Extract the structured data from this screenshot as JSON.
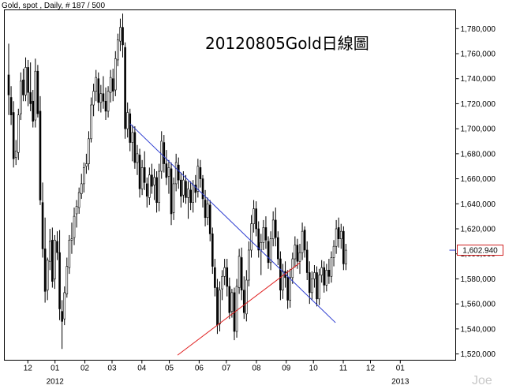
{
  "header": {
    "symbol_line": "Gold, spot , Daily, # 187 / 500"
  },
  "watermark": "Joe",
  "chart_data": {
    "type": "candlestick",
    "title": "20120805Gold日線圖",
    "ylim": [
      1515000,
      1795000
    ],
    "xlim": [
      0,
      187
    ],
    "yticks": [
      1520000,
      1540000,
      1560000,
      1580000,
      1600000,
      1620000,
      1640000,
      1660000,
      1680000,
      1700000,
      1720000,
      1740000,
      1760000,
      1780000
    ],
    "ytick_labels": [
      "1,520,000",
      "1,540,000",
      "1,560,000",
      "1,580,000",
      "1,600,000",
      "1,620,000",
      "1,640,000",
      "1,660,000",
      "1,680,000",
      "1,700,000",
      "1,720,000",
      "1,740,000",
      "1,760,000",
      "1,780,000"
    ],
    "xticks": [
      {
        "x": 7.9,
        "label": "12"
      },
      {
        "x": 19.1,
        "label": "01"
      },
      {
        "x": 31.4,
        "label": "02"
      },
      {
        "x": 42.6,
        "label": "03"
      },
      {
        "x": 54.9,
        "label": "04"
      },
      {
        "x": 66.2,
        "label": "05"
      },
      {
        "x": 78.5,
        "label": "06"
      },
      {
        "x": 89.7,
        "label": "07"
      },
      {
        "x": 102.1,
        "label": "08"
      },
      {
        "x": 114.4,
        "label": "09"
      },
      {
        "x": 125.6,
        "label": "10"
      },
      {
        "x": 137.9,
        "label": "11"
      },
      {
        "x": 149.1,
        "label": "12"
      },
      {
        "x": 161.4,
        "label": "01"
      }
    ],
    "year_labels": [
      {
        "x": 19.1,
        "label": "2012"
      },
      {
        "x": 161.4,
        "label": "2013"
      }
    ],
    "last_price": 1602940,
    "last_price_label": "1,602.940",
    "trendlines": [
      {
        "name": "resistance",
        "color": "#2a3ad0",
        "from": [
          50,
          1704000
        ],
        "to": [
          134.7,
          1545000
        ]
      },
      {
        "name": "support",
        "color": "#e02020",
        "from": [
          69.6,
          1519000
        ],
        "to": [
          120.1,
          1593000
        ]
      }
    ],
    "ohlc": [
      [
        1743000,
        1768000,
        1711000,
        1727000
      ],
      [
        1725000,
        1734000,
        1703000,
        1711000
      ],
      [
        1713000,
        1722000,
        1669000,
        1676000
      ],
      [
        1677000,
        1691000,
        1671000,
        1682000
      ],
      [
        1681000,
        1716000,
        1675000,
        1711000
      ],
      [
        1712000,
        1745000,
        1707000,
        1738000
      ],
      [
        1739000,
        1748000,
        1722000,
        1727000
      ],
      [
        1727000,
        1757000,
        1722000,
        1749000
      ],
      [
        1749000,
        1755000,
        1718000,
        1729000
      ],
      [
        1729000,
        1753000,
        1714000,
        1720000
      ],
      [
        1722000,
        1731000,
        1701000,
        1706000
      ],
      [
        1707000,
        1756000,
        1701000,
        1746000
      ],
      [
        1746000,
        1751000,
        1709000,
        1712000
      ],
      [
        1714000,
        1726000,
        1639000,
        1643000
      ],
      [
        1641000,
        1657000,
        1597000,
        1604000
      ],
      [
        1604000,
        1629000,
        1561000,
        1570000
      ],
      [
        1571000,
        1597000,
        1563000,
        1595000
      ],
      [
        1594000,
        1620000,
        1587000,
        1610000
      ],
      [
        1611000,
        1621000,
        1573000,
        1578000
      ],
      [
        1580000,
        1615000,
        1572000,
        1611000
      ],
      [
        1610000,
        1618000,
        1595000,
        1601000
      ],
      [
        1601000,
        1619000,
        1547000,
        1556000
      ],
      [
        1554000,
        1563000,
        1524000,
        1546000
      ],
      [
        1548000,
        1574000,
        1543000,
        1569000
      ],
      [
        1568000,
        1597000,
        1565000,
        1590000
      ],
      [
        1589000,
        1615000,
        1584000,
        1611000
      ],
      [
        1611000,
        1625000,
        1600000,
        1612000
      ],
      [
        1613000,
        1637000,
        1607000,
        1630000
      ],
      [
        1632000,
        1643000,
        1621000,
        1638000
      ],
      [
        1637000,
        1653000,
        1632000,
        1649000
      ],
      [
        1648000,
        1664000,
        1644000,
        1656000
      ],
      [
        1656000,
        1673000,
        1649000,
        1669000
      ],
      [
        1670000,
        1680000,
        1664000,
        1672000
      ],
      [
        1672000,
        1698000,
        1667000,
        1692000
      ],
      [
        1692000,
        1725000,
        1689000,
        1719000
      ],
      [
        1719000,
        1736000,
        1710000,
        1730000
      ],
      [
        1730000,
        1747000,
        1722000,
        1741000
      ],
      [
        1740000,
        1745000,
        1714000,
        1721000
      ],
      [
        1721000,
        1735000,
        1713000,
        1728000
      ],
      [
        1728000,
        1742000,
        1716000,
        1722000
      ],
      [
        1722000,
        1733000,
        1707000,
        1714000
      ],
      [
        1714000,
        1734000,
        1709000,
        1730000
      ],
      [
        1729000,
        1747000,
        1721000,
        1741000
      ],
      [
        1740000,
        1748000,
        1722000,
        1730000
      ],
      [
        1731000,
        1762000,
        1726000,
        1756000
      ],
      [
        1755000,
        1776000,
        1750000,
        1771000
      ],
      [
        1770000,
        1788000,
        1762000,
        1781000
      ],
      [
        1781000,
        1792000,
        1757000,
        1767000
      ],
      [
        1765000,
        1769000,
        1692000,
        1700000
      ],
      [
        1700000,
        1721000,
        1693000,
        1713000
      ],
      [
        1712000,
        1716000,
        1682000,
        1689000
      ],
      [
        1689000,
        1703000,
        1674000,
        1697000
      ],
      [
        1697000,
        1702000,
        1668000,
        1673000
      ],
      [
        1673000,
        1687000,
        1663000,
        1680000
      ],
      [
        1679000,
        1684000,
        1645000,
        1652000
      ],
      [
        1652000,
        1675000,
        1647000,
        1669000
      ],
      [
        1669000,
        1682000,
        1651000,
        1657000
      ],
      [
        1656000,
        1661000,
        1637000,
        1646000
      ],
      [
        1645000,
        1669000,
        1639000,
        1663000
      ],
      [
        1663000,
        1672000,
        1648000,
        1654000
      ],
      [
        1655000,
        1668000,
        1643000,
        1661000
      ],
      [
        1661000,
        1666000,
        1633000,
        1641000
      ],
      [
        1641000,
        1672000,
        1634000,
        1666000
      ],
      [
        1666000,
        1698000,
        1660000,
        1690000
      ],
      [
        1689000,
        1695000,
        1665000,
        1672000
      ],
      [
        1672000,
        1683000,
        1655000,
        1661000
      ],
      [
        1662000,
        1675000,
        1648000,
        1669000
      ],
      [
        1668000,
        1673000,
        1623000,
        1632000
      ],
      [
        1633000,
        1661000,
        1627000,
        1656000
      ],
      [
        1656000,
        1680000,
        1650000,
        1673000
      ],
      [
        1671000,
        1677000,
        1652000,
        1659000
      ],
      [
        1659000,
        1665000,
        1637000,
        1646000
      ],
      [
        1647000,
        1666000,
        1641000,
        1659000
      ],
      [
        1658000,
        1663000,
        1640000,
        1645000
      ],
      [
        1645000,
        1658000,
        1628000,
        1652000
      ],
      [
        1651000,
        1658000,
        1635000,
        1641000
      ],
      [
        1641000,
        1659000,
        1633000,
        1655000
      ],
      [
        1655000,
        1663000,
        1641000,
        1649000
      ],
      [
        1650000,
        1676000,
        1645000,
        1670000
      ],
      [
        1669000,
        1675000,
        1653000,
        1660000
      ],
      [
        1660000,
        1663000,
        1637000,
        1644000
      ],
      [
        1643000,
        1651000,
        1622000,
        1629000
      ],
      [
        1629000,
        1645000,
        1623000,
        1640000
      ],
      [
        1639000,
        1643000,
        1610000,
        1616000
      ],
      [
        1616000,
        1621000,
        1584000,
        1590000
      ],
      [
        1589000,
        1596000,
        1566000,
        1573000
      ],
      [
        1573000,
        1580000,
        1536000,
        1543000
      ],
      [
        1544000,
        1578000,
        1538000,
        1571000
      ],
      [
        1572000,
        1587000,
        1563000,
        1582000
      ],
      [
        1582000,
        1596000,
        1575000,
        1589000
      ],
      [
        1589000,
        1596000,
        1566000,
        1574000
      ],
      [
        1574000,
        1581000,
        1548000,
        1553000
      ],
      [
        1554000,
        1572000,
        1549000,
        1569000
      ],
      [
        1569000,
        1573000,
        1531000,
        1538000
      ],
      [
        1538000,
        1580000,
        1533000,
        1574000
      ],
      [
        1573000,
        1604000,
        1568000,
        1598000
      ],
      [
        1597000,
        1605000,
        1563000,
        1571000
      ],
      [
        1571000,
        1582000,
        1548000,
        1553000
      ],
      [
        1552000,
        1587000,
        1546000,
        1579000
      ],
      [
        1579000,
        1610000,
        1574000,
        1603000
      ],
      [
        1603000,
        1631000,
        1597000,
        1624000
      ],
      [
        1624000,
        1643000,
        1617000,
        1636000
      ],
      [
        1636000,
        1642000,
        1614000,
        1620000
      ],
      [
        1620000,
        1626000,
        1597000,
        1603000
      ],
      [
        1603000,
        1616000,
        1583000,
        1609000
      ],
      [
        1609000,
        1627000,
        1603000,
        1621000
      ],
      [
        1621000,
        1630000,
        1604000,
        1611000
      ],
      [
        1610000,
        1614000,
        1588000,
        1593000
      ],
      [
        1593000,
        1618000,
        1587000,
        1612000
      ],
      [
        1612000,
        1634000,
        1606000,
        1627000
      ],
      [
        1627000,
        1637000,
        1606000,
        1613000
      ],
      [
        1613000,
        1618000,
        1591000,
        1596000
      ],
      [
        1596000,
        1602000,
        1563000,
        1571000
      ],
      [
        1571000,
        1592000,
        1564000,
        1586000
      ],
      [
        1586000,
        1594000,
        1573000,
        1581000
      ],
      [
        1581000,
        1587000,
        1556000,
        1563000
      ],
      [
        1563000,
        1588000,
        1557000,
        1581000
      ],
      [
        1581000,
        1601000,
        1576000,
        1596000
      ],
      [
        1596000,
        1614000,
        1589000,
        1607000
      ],
      [
        1607000,
        1612000,
        1588000,
        1594000
      ],
      [
        1594000,
        1608000,
        1584000,
        1601000
      ],
      [
        1601000,
        1625000,
        1595000,
        1618000
      ],
      [
        1619000,
        1622000,
        1597000,
        1603000
      ],
      [
        1603000,
        1610000,
        1579000,
        1585000
      ],
      [
        1585000,
        1594000,
        1560000,
        1569000
      ],
      [
        1569000,
        1586000,
        1563000,
        1580000
      ],
      [
        1580000,
        1591000,
        1573000,
        1585000
      ],
      [
        1585000,
        1590000,
        1558000,
        1564000
      ],
      [
        1564000,
        1588000,
        1559000,
        1583000
      ],
      [
        1583000,
        1595000,
        1577000,
        1589000
      ],
      [
        1589000,
        1594000,
        1569000,
        1575000
      ],
      [
        1575000,
        1592000,
        1570000,
        1587000
      ],
      [
        1587000,
        1596000,
        1576000,
        1582000
      ],
      [
        1582000,
        1602000,
        1577000,
        1597000
      ],
      [
        1597000,
        1611000,
        1590000,
        1606000
      ],
      [
        1606000,
        1627000,
        1600000,
        1620000
      ],
      [
        1621000,
        1629000,
        1605000,
        1612000
      ],
      [
        1612000,
        1624000,
        1604000,
        1618000
      ],
      [
        1618000,
        1622000,
        1587000,
        1592000
      ],
      [
        1592000,
        1608000,
        1587000,
        1602940
      ]
    ]
  }
}
